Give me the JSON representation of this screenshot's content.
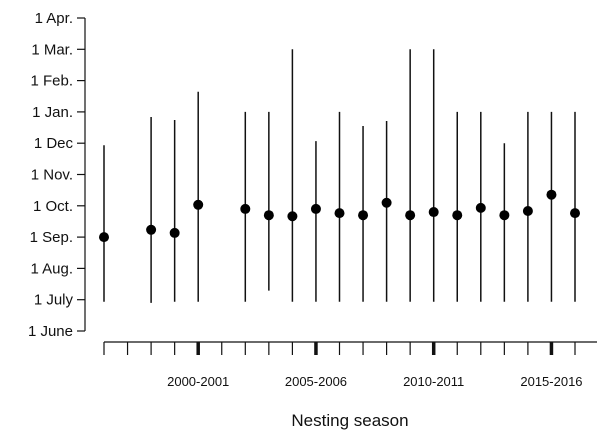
{
  "chart_data": {
    "type": "scatter",
    "title": "",
    "xlabel": "Nesting season",
    "ylabel": "",
    "y_axis": {
      "ticks": [
        "1 June",
        "1 July",
        "1 Aug.",
        "1 Sep.",
        "1 Oct.",
        "1 Nov.",
        "1 Dec",
        "1 Jan.",
        "1 Feb.",
        "1 Mar.",
        "1 Apr."
      ]
    },
    "x_axis": {
      "tick_positions": [
        "1996-1997",
        "1997-1998",
        "1998-1999",
        "1999-2000",
        "2000-2001",
        "2001-2002",
        "2002-2003",
        "2003-2004",
        "2004-2005",
        "2005-2006",
        "2006-2007",
        "2007-2008",
        "2008-2009",
        "2009-2010",
        "2010-2011",
        "2011-2012",
        "2012-2013",
        "2013-2014",
        "2014-2015",
        "2015-2016",
        "2016-2017"
      ],
      "labeled_ticks": [
        "2000-2001",
        "2005-2006",
        "2010-2011",
        "2015-2016"
      ]
    },
    "series": [
      {
        "points": [
          {
            "season": "1996-1997",
            "center": "1 Sep.",
            "low": "29 June",
            "high": "29 Nov."
          },
          {
            "season": "1998-1999",
            "center": "8 Sep.",
            "low": "28 June",
            "high": "27 Dec"
          },
          {
            "season": "1999-2000",
            "center": "5 Sep.",
            "low": "29 June",
            "high": "24 Dec"
          },
          {
            "season": "2000-2001",
            "center": "2 Oct.",
            "low": "29 June",
            "high": "21 Jan."
          },
          {
            "season": "2002-2003",
            "center": "28 Sep.",
            "low": "29 June",
            "high": "1 Jan."
          },
          {
            "season": "2003-2004",
            "center": "22 Sep.",
            "low": "10 July",
            "high": "1 Jan."
          },
          {
            "season": "2004-2005",
            "center": "21 Sep.",
            "low": "29 June",
            "high": "1 Mar."
          },
          {
            "season": "2005-2006",
            "center": "28 Sep.",
            "low": "29 June",
            "high": "3 Dec"
          },
          {
            "season": "2006-2007",
            "center": "24 Sep.",
            "low": "29 June",
            "high": "1 Jan."
          },
          {
            "season": "2007-2008",
            "center": "22 Sep.",
            "low": "29 June",
            "high": "18 Dec"
          },
          {
            "season": "2008-2009",
            "center": "4 Oct.",
            "low": "29 June",
            "high": "23 Dec"
          },
          {
            "season": "2009-2010",
            "center": "22 Sep.",
            "low": "29 June",
            "high": "1 Mar."
          },
          {
            "season": "2010-2011",
            "center": "25 Sep.",
            "low": "29 June",
            "high": "1 Mar."
          },
          {
            "season": "2011-2012",
            "center": "22 Sep.",
            "low": "29 June",
            "high": "1 Jan."
          },
          {
            "season": "2012-2013",
            "center": "29 Sep.",
            "low": "29 June",
            "high": "1 Jan."
          },
          {
            "season": "2013-2014",
            "center": "22 Sep.",
            "low": "29 June",
            "high": "1 Dec"
          },
          {
            "season": "2014-2015",
            "center": "26 Sep.",
            "low": "29 June",
            "high": "1 Jan."
          },
          {
            "season": "2015-2016",
            "center": "12 Oct.",
            "low": "29 June",
            "high": "1 Jan."
          },
          {
            "season": "2016-2017",
            "center": "24 Sep.",
            "low": "29 June",
            "high": "1 Jan."
          }
        ]
      }
    ]
  }
}
